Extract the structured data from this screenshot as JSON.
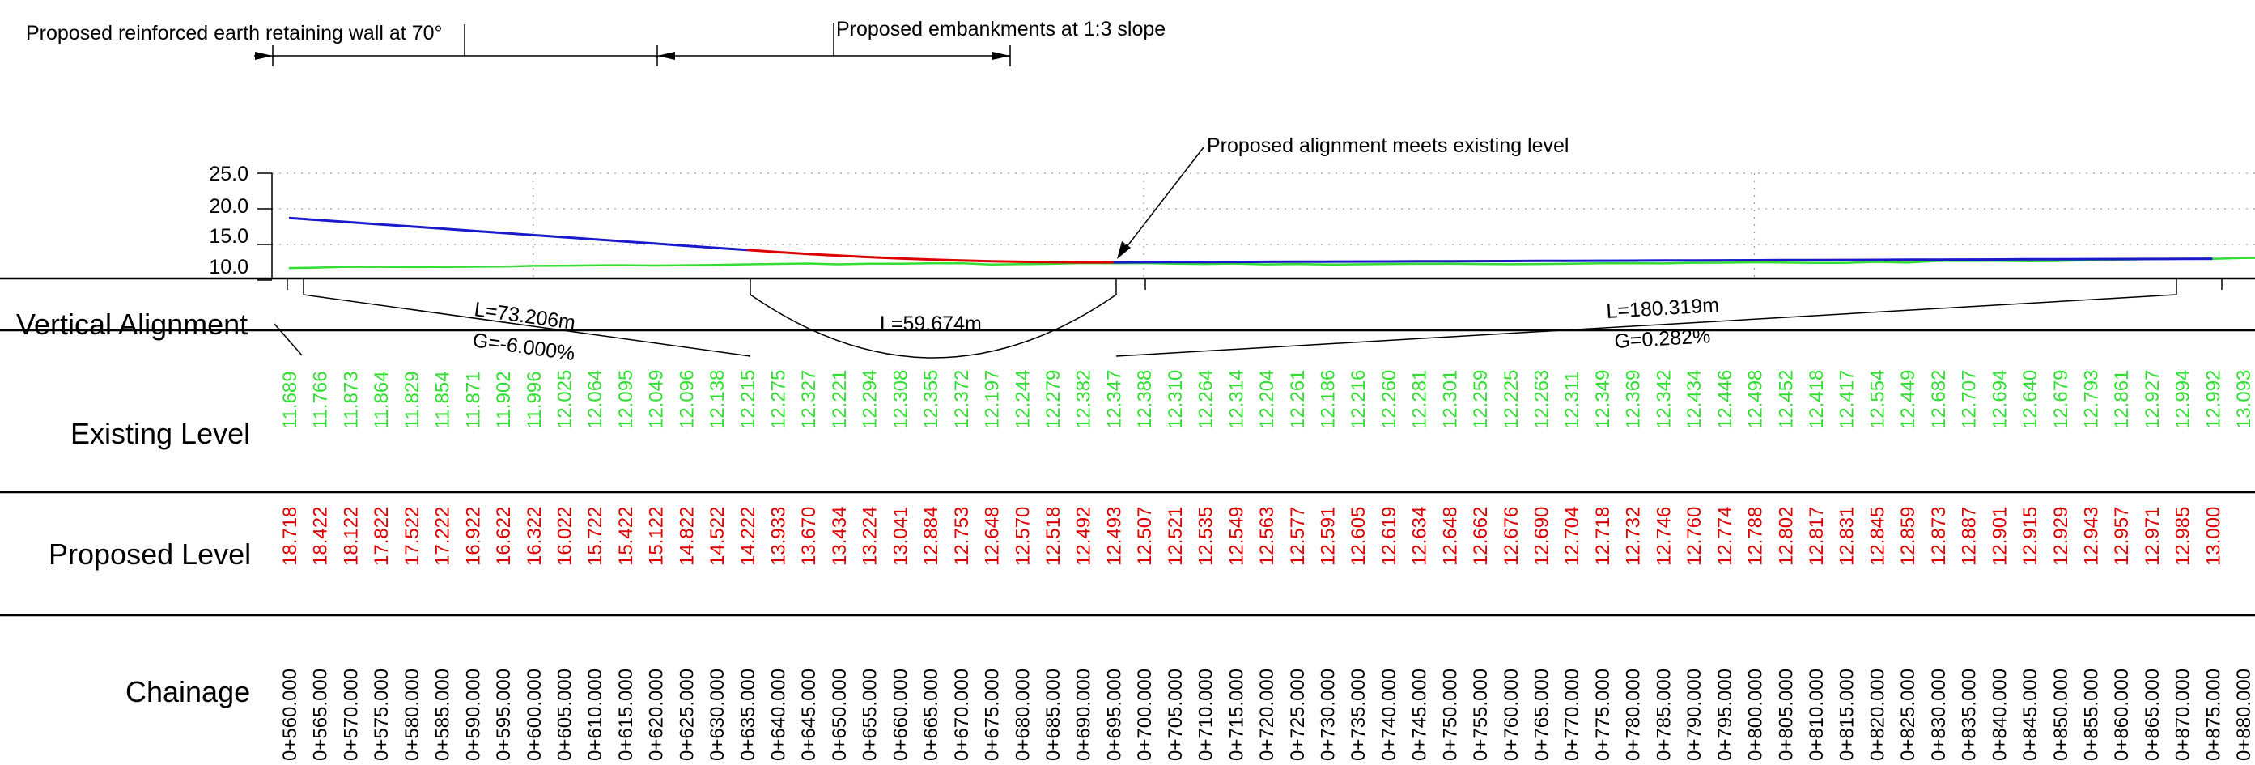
{
  "annotations": {
    "wall_note": "Proposed reinforced earth retaining wall at 70°",
    "embankment_note": "Proposed embankments at 1:3 slope",
    "meets_note": "Proposed alignment meets existing level"
  },
  "y_axis": {
    "ticks": [
      "25.0",
      "20.0",
      "15.0",
      "10.0"
    ]
  },
  "rows": {
    "vertical_alignment": "Vertical Alignment",
    "existing_level": "Existing Level",
    "proposed_level": "Proposed Level",
    "chainage": "Chainage"
  },
  "vertical_alignment": {
    "seg1_length": "L=73.206m",
    "seg1_grade": "G=-6.000%",
    "curve_length": "L=59.674m",
    "seg2_length": "L=180.319m",
    "seg2_grade": "G=0.282%"
  },
  "colors": {
    "existing": "#33dd33",
    "proposed": "#dd0000",
    "alignment_straight": "#1a1acc",
    "alignment_curve": "#dd0000",
    "grid": "#999999"
  },
  "chart_data": {
    "type": "line",
    "ylim": [
      10,
      25
    ],
    "x": [
      560,
      565,
      570,
      575,
      580,
      585,
      590,
      595,
      600,
      605,
      610,
      615,
      620,
      625,
      630,
      635,
      640,
      645,
      650,
      655,
      660,
      665,
      670,
      675,
      680,
      685,
      690,
      695,
      700,
      705,
      710,
      715,
      720,
      725,
      730,
      735,
      740,
      745,
      750,
      755,
      760,
      765,
      770,
      775,
      780,
      785,
      790,
      795,
      800,
      805,
      810,
      815,
      820,
      825,
      830,
      835,
      840,
      845,
      850,
      855,
      860,
      865,
      870,
      875,
      880
    ],
    "series": [
      {
        "name": "Existing Level",
        "values": [
          "11.689",
          "11.766",
          "11.873",
          "11.864",
          "11.829",
          "11.854",
          "11.871",
          "11.902",
          "11.996",
          "12.025",
          "12.064",
          "12.095",
          "12.049",
          "12.096",
          "12.138",
          "12.215",
          "12.275",
          "12.327",
          "12.221",
          "12.294",
          "12.308",
          "12.355",
          "12.372",
          "12.197",
          "12.244",
          "12.279",
          "12.382",
          "12.347",
          "12.388",
          "12.310",
          "12.264",
          "12.314",
          "12.204",
          "12.261",
          "12.186",
          "12.216",
          "12.260",
          "12.281",
          "12.301",
          "12.259",
          "12.225",
          "12.263",
          "12.311",
          "12.349",
          "12.369",
          "12.342",
          "12.434",
          "12.446",
          "12.498",
          "12.452",
          "12.418",
          "12.417",
          "12.554",
          "12.449",
          "12.682",
          "12.707",
          "12.694",
          "12.640",
          "12.679",
          "12.793",
          "12.861",
          "12.927",
          "12.994",
          "12.992",
          "13.093"
        ]
      },
      {
        "name": "Proposed Level",
        "values": [
          "18.718",
          "18.422",
          "18.122",
          "17.822",
          "17.522",
          "17.222",
          "16.922",
          "16.622",
          "16.322",
          "16.022",
          "15.722",
          "15.422",
          "15.122",
          "14.822",
          "14.522",
          "14.222",
          "13.933",
          "13.670",
          "13.434",
          "13.224",
          "13.041",
          "12.884",
          "12.753",
          "12.648",
          "12.570",
          "12.518",
          "12.492",
          "12.493",
          "12.507",
          "12.521",
          "12.535",
          "12.549",
          "12.563",
          "12.577",
          "12.591",
          "12.605",
          "12.619",
          "12.634",
          "12.648",
          "12.662",
          "12.676",
          "12.690",
          "12.704",
          "12.718",
          "12.732",
          "12.746",
          "12.760",
          "12.774",
          "12.788",
          "12.802",
          "12.817",
          "12.831",
          "12.845",
          "12.859",
          "12.873",
          "12.887",
          "12.901",
          "12.915",
          "12.929",
          "12.943",
          "12.957",
          "12.971",
          "12.985",
          "13.000",
          ""
        ]
      }
    ],
    "chainage_labels": [
      "0+560.000",
      "0+565.000",
      "0+570.000",
      "0+575.000",
      "0+580.000",
      "0+585.000",
      "0+590.000",
      "0+595.000",
      "0+600.000",
      "0+605.000",
      "0+610.000",
      "0+615.000",
      "0+620.000",
      "0+625.000",
      "0+630.000",
      "0+635.000",
      "0+640.000",
      "0+645.000",
      "0+650.000",
      "0+655.000",
      "0+660.000",
      "0+665.000",
      "0+670.000",
      "0+675.000",
      "0+680.000",
      "0+685.000",
      "0+690.000",
      "0+695.000",
      "0+700.000",
      "0+705.000",
      "0+710.000",
      "0+715.000",
      "0+720.000",
      "0+725.000",
      "0+730.000",
      "0+735.000",
      "0+740.000",
      "0+745.000",
      "0+750.000",
      "0+755.000",
      "0+760.000",
      "0+765.000",
      "0+770.000",
      "0+775.000",
      "0+780.000",
      "0+785.000",
      "0+790.000",
      "0+795.000",
      "0+800.000",
      "0+805.000",
      "0+810.000",
      "0+815.000",
      "0+820.000",
      "0+825.000",
      "0+830.000",
      "0+835.000",
      "0+840.000",
      "0+845.000",
      "0+850.000",
      "0+855.000",
      "0+860.000",
      "0+865.000",
      "0+870.000",
      "0+875.000",
      "0+880.000"
    ]
  }
}
